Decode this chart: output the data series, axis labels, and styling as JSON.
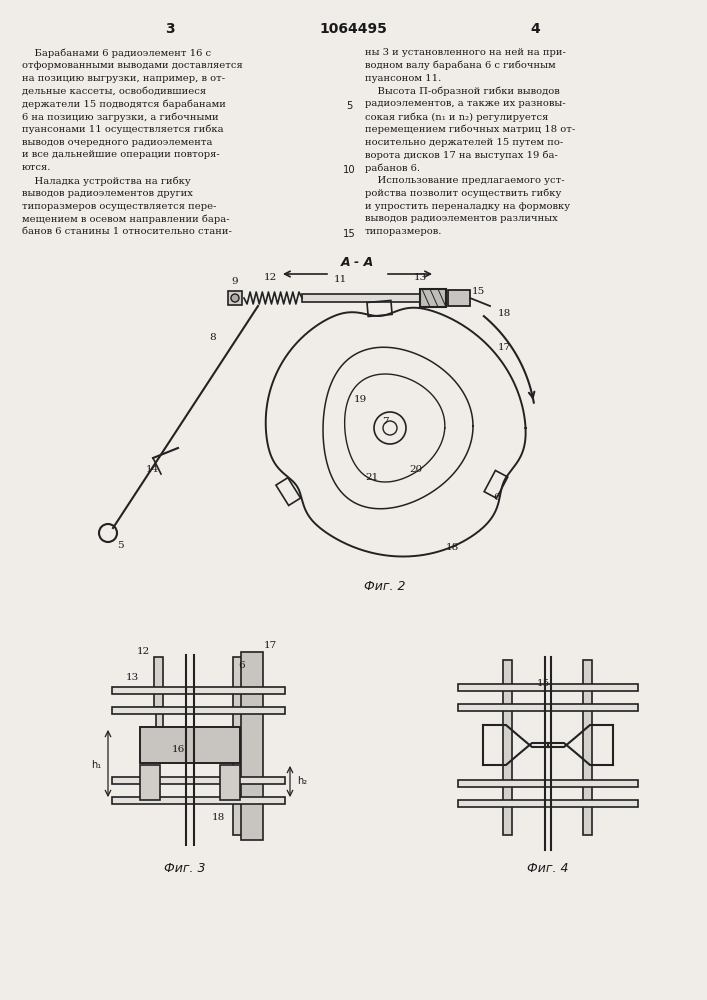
{
  "bg_color": "#f0ede8",
  "text_color": "#1a1a1a",
  "header": {
    "left_num": "3",
    "center_num": "1064495",
    "right_num": "4"
  },
  "col_left_text": [
    "    Барабанами 6 радиоэлемент 16 с",
    "отформованными выводами доставляется",
    "на позицию выгрузки, например, в от-",
    "дельные кассеты, освободившиеся",
    "держатели 15 подводятся барабанами",
    "6 на позицию загрузки, а гибочными",
    "пуансонами 11 осуществляется гибка",
    "выводов очередного радиоэлемента",
    "и все дальнейшие операции повторя-",
    "ются.",
    "    Наладка устройства на гибку",
    "выводов радиоэлементов других",
    "типоразмеров осуществляется пере-",
    "мещением в осевом направлении бара-",
    "банов 6 станины 1 относительно стани-"
  ],
  "col_right_text": [
    "ны 3 и установленного на ней на при-",
    "водном валу барабана 6 с гибочным",
    "пуансоном 11.",
    "    Высота П-образной гибки выводов",
    "радиоэлементов, а также их разновы-",
    "сокая гибка (n₁ и n₂) регулируется",
    "перемещением гибочных матриц 18 от-",
    "носительно держателей 15 путем по-",
    "ворота дисков 17 на выступах 19 ба-",
    "рабанов 6.",
    "    Использование предлагаемого уст-",
    "ройства позволит осуществить гибку",
    "и упростить переналадку на формовку",
    "выводов радиоэлементов различных",
    "типоразмеров."
  ],
  "fig2_caption": "Фиг. 2",
  "fig3_caption": "Фиг. 3",
  "fig4_caption": "Фиг. 4",
  "aa_label": "A - A"
}
